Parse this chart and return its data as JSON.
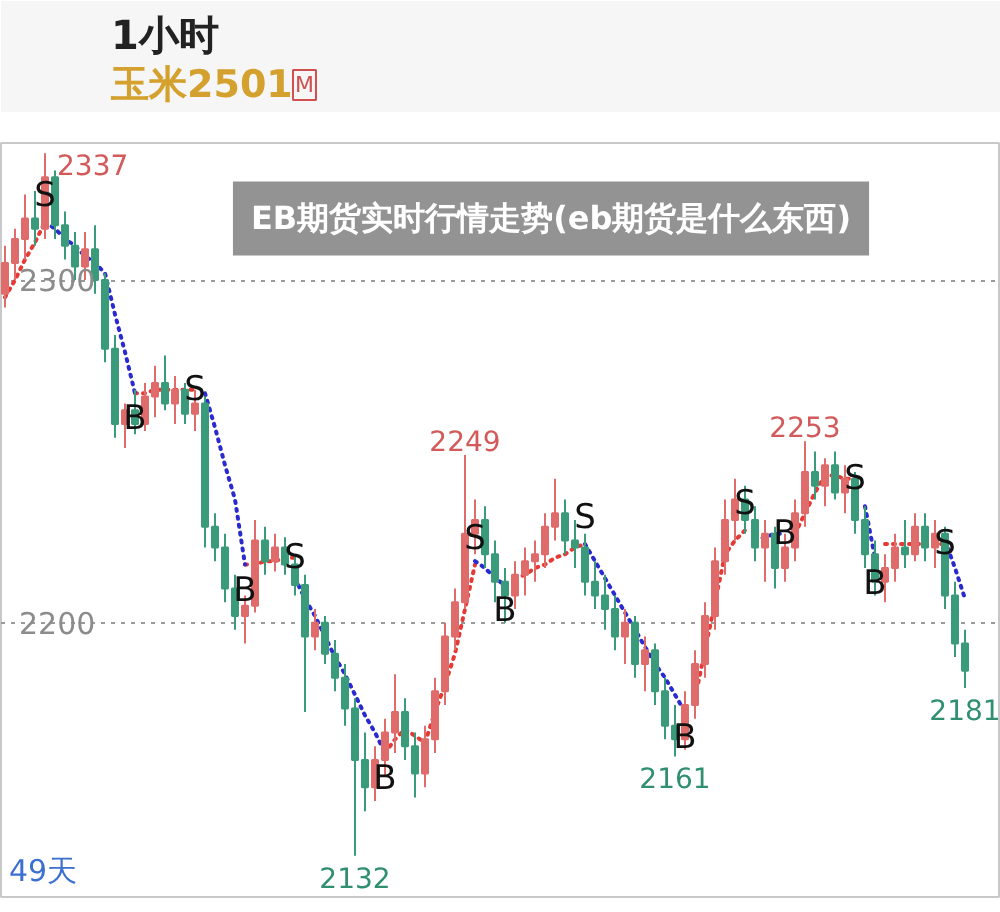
{
  "chart_data": {
    "type": "candlestick",
    "title": "EB期货实时行情走势(eb期货是什么东西)",
    "annotations": [
      "1小时",
      "玉米2501",
      "M",
      "49天"
    ],
    "categories": [
      null,
      null,
      null,
      null,
      null,
      null,
      null,
      null,
      null,
      null,
      null,
      null,
      null,
      null,
      null,
      null,
      null,
      null,
      null,
      null,
      null,
      null,
      null,
      null,
      null,
      null,
      null,
      null,
      null,
      null,
      null,
      null,
      null,
      null,
      null,
      null,
      null,
      null,
      null,
      null,
      null,
      null,
      null,
      null,
      null,
      null,
      null,
      null,
      null,
      null,
      null,
      null,
      null,
      null,
      null,
      null,
      null,
      null,
      null,
      null,
      null,
      null,
      null,
      null,
      null,
      null,
      null,
      null,
      null,
      null,
      null,
      null,
      null,
      null,
      null,
      null,
      null,
      null,
      null,
      null,
      null,
      null,
      null,
      null,
      null,
      null,
      null,
      null,
      null,
      null,
      null,
      null,
      null,
      null,
      null,
      null,
      null
    ],
    "ohlc": [
      [
        2296,
        2310,
        2292,
        2305
      ],
      [
        2305,
        2315,
        2300,
        2312
      ],
      [
        2312,
        2325,
        2306,
        2318
      ],
      [
        2318,
        2326,
        2310,
        2315
      ],
      [
        2315,
        2337,
        2312,
        2330
      ],
      [
        2330,
        2332,
        2312,
        2316
      ],
      [
        2316,
        2320,
        2306,
        2310
      ],
      [
        2310,
        2314,
        2300,
        2304
      ],
      [
        2304,
        2314,
        2300,
        2309
      ],
      [
        2309,
        2316,
        2296,
        2300
      ],
      [
        2300,
        2302,
        2276,
        2280
      ],
      [
        2280,
        2284,
        2254,
        2258
      ],
      [
        2258,
        2264,
        2251,
        2262
      ],
      [
        2262,
        2268,
        2255,
        2258
      ],
      [
        2258,
        2270,
        2256,
        2266
      ],
      [
        2266,
        2275,
        2260,
        2270
      ],
      [
        2270,
        2278,
        2262,
        2264
      ],
      [
        2264,
        2272,
        2258,
        2268
      ],
      [
        2268,
        2270,
        2258,
        2261
      ],
      [
        2261,
        2268,
        2256,
        2264
      ],
      [
        2264,
        2266,
        2222,
        2228
      ],
      [
        2228,
        2232,
        2218,
        2222
      ],
      [
        2222,
        2226,
        2206,
        2210
      ],
      [
        2210,
        2214,
        2198,
        2202
      ],
      [
        2202,
        2208,
        2194,
        2205
      ],
      [
        2205,
        2230,
        2203,
        2224
      ],
      [
        2224,
        2228,
        2214,
        2218
      ],
      [
        2218,
        2226,
        2215,
        2222
      ],
      [
        2222,
        2225,
        2214,
        2217
      ],
      [
        2217,
        2220,
        2208,
        2211
      ],
      [
        2211,
        2214,
        2174,
        2196
      ],
      [
        2196,
        2204,
        2192,
        2200
      ],
      [
        2200,
        2202,
        2188,
        2191
      ],
      [
        2191,
        2195,
        2180,
        2184
      ],
      [
        2184,
        2188,
        2170,
        2175
      ],
      [
        2175,
        2178,
        2132,
        2160
      ],
      [
        2160,
        2168,
        2145,
        2152
      ],
      [
        2152,
        2164,
        2148,
        2160
      ],
      [
        2160,
        2172,
        2155,
        2168
      ],
      [
        2168,
        2185,
        2162,
        2174
      ],
      [
        2174,
        2178,
        2160,
        2164
      ],
      [
        2164,
        2168,
        2149,
        2156
      ],
      [
        2156,
        2170,
        2152,
        2166
      ],
      [
        2166,
        2184,
        2162,
        2180
      ],
      [
        2180,
        2200,
        2176,
        2196
      ],
      [
        2196,
        2210,
        2192,
        2206
      ],
      [
        2206,
        2249,
        2204,
        2226
      ],
      [
        2226,
        2236,
        2220,
        2230
      ],
      [
        2230,
        2234,
        2216,
        2220
      ],
      [
        2220,
        2224,
        2206,
        2212
      ],
      [
        2212,
        2216,
        2200,
        2208
      ],
      [
        2208,
        2218,
        2204,
        2214
      ],
      [
        2214,
        2222,
        2208,
        2218
      ],
      [
        2218,
        2224,
        2212,
        2220
      ],
      [
        2220,
        2232,
        2216,
        2228
      ],
      [
        2228,
        2242,
        2224,
        2232
      ],
      [
        2232,
        2236,
        2220,
        2224
      ],
      [
        2224,
        2230,
        2216,
        2222
      ],
      [
        2222,
        2226,
        2208,
        2212
      ],
      [
        2212,
        2218,
        2204,
        2208
      ],
      [
        2208,
        2214,
        2198,
        2204
      ],
      [
        2204,
        2208,
        2192,
        2196
      ],
      [
        2196,
        2204,
        2188,
        2200
      ],
      [
        2200,
        2202,
        2184,
        2188
      ],
      [
        2188,
        2196,
        2180,
        2192
      ],
      [
        2192,
        2194,
        2176,
        2180
      ],
      [
        2180,
        2184,
        2166,
        2170
      ],
      [
        2170,
        2176,
        2161,
        2166
      ],
      [
        2166,
        2180,
        2163,
        2176
      ],
      [
        2176,
        2192,
        2172,
        2188
      ],
      [
        2188,
        2206,
        2184,
        2202
      ],
      [
        2202,
        2222,
        2198,
        2218
      ],
      [
        2218,
        2236,
        2214,
        2230
      ],
      [
        2230,
        2242,
        2224,
        2236
      ],
      [
        2236,
        2240,
        2226,
        2230
      ],
      [
        2230,
        2234,
        2218,
        2222
      ],
      [
        2222,
        2230,
        2212,
        2226
      ],
      [
        2226,
        2228,
        2210,
        2216
      ],
      [
        2216,
        2226,
        2212,
        2222
      ],
      [
        2222,
        2236,
        2218,
        2232
      ],
      [
        2232,
        2253,
        2228,
        2244
      ],
      [
        2244,
        2250,
        2236,
        2240
      ],
      [
        2240,
        2248,
        2234,
        2246
      ],
      [
        2246,
        2250,
        2236,
        2238
      ],
      [
        2238,
        2246,
        2232,
        2242
      ],
      [
        2242,
        2244,
        2226,
        2230
      ],
      [
        2230,
        2234,
        2216,
        2220
      ],
      [
        2220,
        2224,
        2208,
        2212
      ],
      [
        2212,
        2220,
        2206,
        2216
      ],
      [
        2216,
        2226,
        2212,
        2222
      ],
      [
        2222,
        2230,
        2216,
        2220
      ],
      [
        2220,
        2232,
        2218,
        2228
      ],
      [
        2228,
        2232,
        2218,
        2222
      ],
      [
        2222,
        2230,
        2216,
        2226
      ],
      [
        2226,
        2228,
        2204,
        2208
      ],
      [
        2208,
        2212,
        2190,
        2194
      ],
      [
        2194,
        2198,
        2181,
        2186
      ]
    ],
    "colors": [
      "#e06b6b",
      "#e06b6b",
      "#e06b6b",
      "#3a9b7a",
      "#e06b6b",
      "#3a9b7a",
      "#3a9b7a",
      "#3a9b7a",
      "#e06b6b",
      "#3a9b7a",
      "#3a9b7a",
      "#3a9b7a",
      "#e06b6b",
      "#3a9b7a",
      "#e06b6b",
      "#e06b6b",
      "#3a9b7a",
      "#e06b6b",
      "#3a9b7a",
      "#e06b6b",
      "#3a9b7a",
      "#3a9b7a",
      "#3a9b7a",
      "#3a9b7a",
      "#e06b6b",
      "#e06b6b",
      "#3a9b7a",
      "#e06b6b",
      "#3a9b7a",
      "#3a9b7a",
      "#3a9b7a",
      "#e06b6b",
      "#3a9b7a",
      "#3a9b7a",
      "#3a9b7a",
      "#3a9b7a",
      "#3a9b7a",
      "#e06b6b",
      "#e06b6b",
      "#e06b6b",
      "#3a9b7a",
      "#3a9b7a",
      "#e06b6b",
      "#e06b6b",
      "#e06b6b",
      "#e06b6b",
      "#e06b6b",
      "#e06b6b",
      "#3a9b7a",
      "#3a9b7a",
      "#3a9b7a",
      "#e06b6b",
      "#e06b6b",
      "#e06b6b",
      "#e06b6b",
      "#e06b6b",
      "#3a9b7a",
      "#3a9b7a",
      "#3a9b7a",
      "#3a9b7a",
      "#3a9b7a",
      "#3a9b7a",
      "#e06b6b",
      "#3a9b7a",
      "#e06b6b",
      "#3a9b7a",
      "#3a9b7a",
      "#3a9b7a",
      "#e06b6b",
      "#e06b6b",
      "#e06b6b",
      "#e06b6b",
      "#e06b6b",
      "#e06b6b",
      "#3a9b7a",
      "#3a9b7a",
      "#e06b6b",
      "#3a9b7a",
      "#e06b6b",
      "#e06b6b",
      "#e06b6b",
      "#3a9b7a",
      "#e06b6b",
      "#3a9b7a",
      "#e06b6b",
      "#3a9b7a",
      "#3a9b7a",
      "#3a9b7a",
      "#e06b6b",
      "#e06b6b",
      "#3a9b7a",
      "#e06b6b",
      "#3a9b7a",
      "#e06b6b",
      "#3a9b7a",
      "#3a9b7a",
      "#3a9b7a"
    ],
    "value_labels": [
      null,
      null,
      null,
      null,
      "2337",
      null,
      null,
      null,
      null,
      null,
      null,
      null,
      null,
      null,
      null,
      null,
      null,
      null,
      null,
      null,
      null,
      null,
      null,
      null,
      null,
      null,
      null,
      null,
      null,
      null,
      null,
      null,
      null,
      null,
      null,
      "2132",
      null,
      null,
      null,
      null,
      null,
      null,
      null,
      null,
      null,
      null,
      "2249",
      null,
      null,
      null,
      null,
      null,
      null,
      null,
      null,
      null,
      null,
      null,
      null,
      null,
      null,
      null,
      null,
      null,
      null,
      null,
      null,
      "2161",
      null,
      null,
      null,
      null,
      null,
      null,
      null,
      null,
      null,
      null,
      null,
      null,
      "2253",
      null,
      null,
      null,
      null,
      null,
      null,
      null,
      null,
      null,
      null,
      null,
      null,
      null,
      null,
      null,
      "2181"
    ],
    "series": [
      {
        "type": "line",
        "color": "#e53935",
        "values": [
          2295,
          2300,
          2306,
          2311,
          2317,
          null,
          null,
          null,
          null,
          null,
          null,
          null,
          null,
          2267,
          2267,
          2268,
          2268,
          2268,
          2268,
          2268,
          null,
          null,
          null,
          null,
          2217,
          2217,
          2218,
          2218,
          2219,
          2219,
          null,
          null,
          null,
          null,
          null,
          null,
          null,
          null,
          2162,
          2166,
          2169,
          2167,
          2165,
          2174,
          2182,
          2191,
          2204,
          2217,
          null,
          null,
          null,
          2213,
          2214,
          2216,
          2217,
          2219,
          2220,
          2222,
          2223,
          null,
          null,
          null,
          null,
          null,
          null,
          null,
          null,
          null,
          null,
          2178,
          2192,
          2206,
          2220,
          2224,
          2227,
          null,
          null,
          null,
          null,
          2226,
          2232,
          2238,
          2243,
          2243,
          2242,
          2242,
          null,
          null,
          2223,
          2223,
          2223,
          2223,
          2223,
          2223,
          2223,
          null,
          null
        ],
        "value_labels": [
          null,
          null,
          null,
          null,
          "S",
          null,
          null,
          null,
          null,
          null,
          null,
          null,
          null,
          null,
          null,
          null,
          null,
          null,
          null,
          "S",
          null,
          null,
          null,
          null,
          null,
          null,
          null,
          null,
          null,
          "S",
          null,
          null,
          null,
          null,
          null,
          null,
          null,
          null,
          null,
          null,
          null,
          null,
          null,
          null,
          null,
          null,
          null,
          "S",
          null,
          null,
          null,
          null,
          null,
          null,
          null,
          null,
          null,
          null,
          "S",
          null,
          null,
          null,
          null,
          null,
          null,
          null,
          null,
          null,
          null,
          null,
          null,
          null,
          null,
          null,
          "S",
          null,
          null,
          null,
          null,
          null,
          null,
          null,
          null,
          null,
          null,
          "S",
          null,
          null,
          null,
          null,
          null,
          null,
          null,
          null,
          "S",
          null,
          null
        ]
      },
      {
        "type": "line",
        "color": "#2a2ad0",
        "values": [
          null,
          null,
          null,
          null,
          2317,
          2315,
          2312,
          2310,
          2307,
          2305,
          2302,
          2290,
          2279,
          2267,
          null,
          null,
          null,
          null,
          null,
          null,
          2267,
          2257,
          2246,
          2236,
          2217,
          null,
          null,
          null,
          null,
          2213,
          2207,
          2202,
          2196,
          2190,
          2185,
          2179,
          2173,
          2168,
          2162,
          null,
          null,
          null,
          null,
          null,
          null,
          null,
          null,
          2218,
          2216,
          2213,
          2211,
          null,
          null,
          null,
          null,
          null,
          null,
          null,
          2223,
          2218,
          2213,
          2208,
          2203,
          2198,
          2193,
          2188,
          2184,
          2179,
          2174,
          null,
          null,
          null,
          null,
          null,
          null,
          2224,
          2225,
          2226,
          2226,
          null,
          null,
          null,
          null,
          null,
          null,
          null,
          2234,
          2219,
          null,
          null,
          null,
          null,
          null,
          null,
          2224,
          2216,
          2207
        ],
        "value_labels": [
          null,
          null,
          null,
          null,
          null,
          null,
          null,
          null,
          null,
          null,
          null,
          null,
          null,
          "B",
          null,
          null,
          null,
          null,
          null,
          null,
          null,
          null,
          null,
          null,
          "B",
          null,
          null,
          null,
          null,
          null,
          null,
          null,
          null,
          null,
          null,
          null,
          null,
          null,
          "B",
          null,
          null,
          null,
          null,
          null,
          null,
          null,
          null,
          null,
          null,
          null,
          "B",
          null,
          null,
          null,
          null,
          null,
          null,
          null,
          null,
          null,
          null,
          null,
          null,
          null,
          null,
          null,
          null,
          null,
          "B",
          null,
          null,
          null,
          null,
          null,
          null,
          null,
          null,
          null,
          "B",
          null,
          null,
          null,
          null,
          null,
          null,
          null,
          null,
          "B",
          null,
          null,
          null,
          null,
          null,
          null,
          null,
          null,
          null
        ]
      }
    ],
    "line_style": "dotted",
    "ylim": [
      2120,
      2340
    ],
    "yticks": [
      2200,
      2300
    ],
    "grid": "y",
    "tick_labels": "y"
  }
}
